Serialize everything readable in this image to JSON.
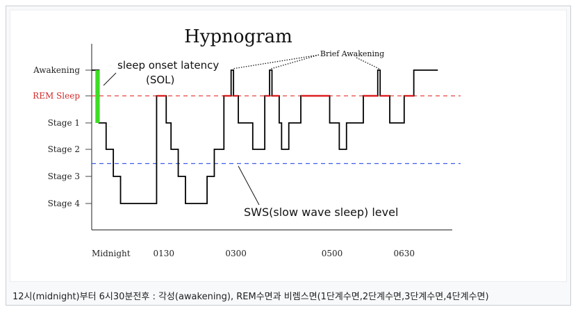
{
  "caption": "12시(midnight)부터 6시30분전후 : 각성(awakening), REM수면과 비렘스면(1단계수면,2단계수면,3단계수면,4단계수면)",
  "chart_data": {
    "type": "line",
    "title": "Hypnogram",
    "y_categories": [
      "Awakening",
      "REM Sleep",
      "Stage 1",
      "Stage 2",
      "Stage 3",
      "Stage 4"
    ],
    "x_tick_labels": [
      "Midnight",
      "0130",
      "0300",
      "0500",
      "0630"
    ],
    "x_tick_hours": [
      0,
      1.5,
      3,
      5,
      6.5
    ],
    "xlim_hours": [
      0,
      7.5
    ],
    "hypnogram_steps": [
      {
        "t": 0.0,
        "stage": "Awakening"
      },
      {
        "t": 0.15,
        "stage": "Stage 1"
      },
      {
        "t": 0.3,
        "stage": "Stage 2"
      },
      {
        "t": 0.45,
        "stage": "Stage 3"
      },
      {
        "t": 0.6,
        "stage": "Stage 4"
      },
      {
        "t": 1.35,
        "stage": "REM Sleep"
      },
      {
        "t": 1.55,
        "stage": "Stage 1"
      },
      {
        "t": 1.65,
        "stage": "Stage 2"
      },
      {
        "t": 1.8,
        "stage": "Stage 3"
      },
      {
        "t": 1.95,
        "stage": "Stage 4"
      },
      {
        "t": 2.4,
        "stage": "Stage 3"
      },
      {
        "t": 2.55,
        "stage": "Stage 2"
      },
      {
        "t": 2.75,
        "stage": "REM Sleep"
      },
      {
        "t": 2.9,
        "stage": "Awakening"
      },
      {
        "t": 2.95,
        "stage": "REM Sleep"
      },
      {
        "t": 3.05,
        "stage": "Stage 1"
      },
      {
        "t": 3.35,
        "stage": "Stage 2"
      },
      {
        "t": 3.6,
        "stage": "REM Sleep"
      },
      {
        "t": 3.7,
        "stage": "Awakening"
      },
      {
        "t": 3.75,
        "stage": "REM Sleep"
      },
      {
        "t": 3.9,
        "stage": "Stage 1"
      },
      {
        "t": 3.95,
        "stage": "Stage 2"
      },
      {
        "t": 4.1,
        "stage": "Stage 1"
      },
      {
        "t": 4.35,
        "stage": "REM Sleep"
      },
      {
        "t": 4.95,
        "stage": "Stage 1"
      },
      {
        "t": 5.15,
        "stage": "Stage 2"
      },
      {
        "t": 5.3,
        "stage": "Stage 1"
      },
      {
        "t": 5.65,
        "stage": "REM Sleep"
      },
      {
        "t": 5.95,
        "stage": "Awakening"
      },
      {
        "t": 6.0,
        "stage": "REM Sleep"
      },
      {
        "t": 6.2,
        "stage": "Stage 1"
      },
      {
        "t": 6.5,
        "stage": "REM Sleep"
      },
      {
        "t": 6.7,
        "stage": "Awakening"
      },
      {
        "t": 7.2,
        "stage": "Awakening"
      }
    ],
    "rem_level_line": {
      "stage": "REM Sleep",
      "color": "#e8413c",
      "style": "dashed"
    },
    "sws_level_line": {
      "between": [
        "Stage 2",
        "Stage 3"
      ],
      "color": "#3c5be8",
      "style": "dashed"
    },
    "sol_marker": {
      "from": "Awakening",
      "to": "Stage 1",
      "t": 0.12,
      "color": "#3ddd23"
    },
    "annotations": {
      "sol": [
        "sleep onset latency",
        "(SOL)"
      ],
      "brief_awakening": "Brief Awakening",
      "sws": "SWS(slow wave sleep) level"
    },
    "colors": {
      "line": "#000000",
      "rem_segment": "#dd1f1f",
      "rem_label": "#d22a2a",
      "axis": "#444444"
    }
  }
}
